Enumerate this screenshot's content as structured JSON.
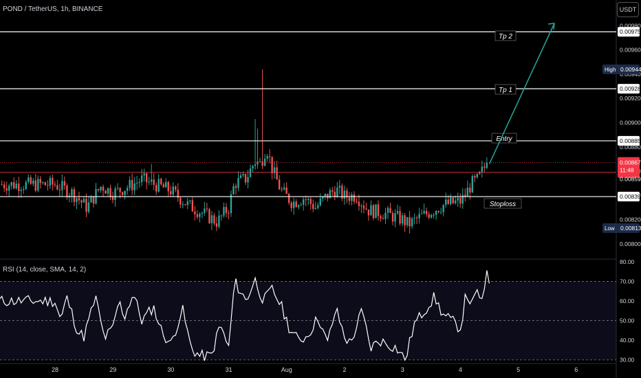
{
  "header": {
    "title": "POND / TetherUS, 1h, BINANCE",
    "currency_button": "USDT"
  },
  "rsi_header": {
    "title": "RSI (14, close, SMA, 14, 2)"
  },
  "colors": {
    "up": "#26a69a",
    "down": "#ef5350",
    "background": "#000000",
    "level_line": "#ffffff",
    "arrow": "#26a69a",
    "rsi_line": "#ffffff",
    "rsi_band": "#0d0c1a",
    "current_price_tag": "#f23645",
    "high_low_tag": "#1c2b4a"
  },
  "chart_data": [
    {
      "type": "candlestick",
      "title": "POND / TetherUS, 1h, BINANCE",
      "x_tick_labels": [
        "28",
        "29",
        "30",
        "31",
        "Aug",
        "2",
        "3",
        "4",
        "5",
        "6"
      ],
      "y_ticks": [
        "0.00980",
        "0.00960",
        "0.00940",
        "0.00920",
        "0.00900",
        "0.00880",
        "0.00860",
        "0.00840",
        "0.00820",
        "0.00800"
      ],
      "ylim": [
        0.00788,
        0.00991
      ],
      "levels": [
        {
          "label": "Tp 2",
          "price": "0.00975"
        },
        {
          "label": "Tp 1",
          "price": "0.00928"
        },
        {
          "label": "Entry",
          "price": "0.00885"
        },
        {
          "label": "Stoploss",
          "price": "0.00839"
        }
      ],
      "price_tags": {
        "high": {
          "label": "High",
          "price": "0.00944"
        },
        "low": {
          "label": "Low",
          "price": "0.00813"
        },
        "current": {
          "price": "0.00867",
          "countdown": "11:48"
        },
        "previous_close": {
          "price": "0.00859"
        }
      },
      "series": [
        {
          "anchor_days": [
            0,
            0.3,
            0.55,
            0.8,
            1.0,
            1.3,
            1.5,
            2.0,
            2.3,
            2.6,
            2.8,
            3.0,
            3.1,
            3.3,
            3.45,
            3.55,
            3.65,
            3.75,
            3.9,
            4.1,
            4.3,
            4.5,
            4.7,
            4.85,
            5.0,
            5.2,
            5.4,
            5.7,
            6.0,
            6.1,
            6.3,
            6.5,
            6.7,
            7.0,
            7.05,
            7.2,
            7.3,
            7.4,
            7.47
          ],
          "anchor_close": [
            0.00849,
            0.00842,
            0.0083,
            0.00848,
            0.00842,
            0.00848,
            0.00853,
            0.00844,
            0.00832,
            0.00824,
            0.00818,
            0.0083,
            0.0085,
            0.00854,
            0.00868,
            0.00866,
            0.0088,
            0.00862,
            0.00844,
            0.00834,
            0.00838,
            0.0083,
            0.0084,
            0.00845,
            0.00839,
            0.0084,
            0.00828,
            0.00825,
            0.0082,
            0.00816,
            0.00822,
            0.00827,
            0.00832,
            0.00835,
            0.00838,
            0.0085,
            0.00853,
            0.00862,
            0.00867
          ]
        }
      ]
    },
    {
      "type": "line",
      "title": "RSI (14, close, SMA, 14, 2)",
      "y_ticks": [
        "80.00",
        "70.00",
        "60.00",
        "50.00",
        "40.00",
        "30.00"
      ],
      "ylim": [
        28.5,
        81
      ],
      "band": [
        30,
        70
      ],
      "mid_line": 50,
      "series": [
        {
          "name": "RSI",
          "anchor_days": [
            0,
            0.1,
            0.2,
            0.4,
            0.5,
            0.7,
            0.85,
            1.0,
            1.1,
            1.2,
            1.35,
            1.5,
            1.7,
            1.85,
            2.0,
            2.2,
            2.35,
            2.5,
            2.7,
            2.85,
            3.0,
            3.1,
            3.3,
            3.45,
            3.6,
            3.75,
            3.9,
            4.05,
            4.2,
            4.35,
            4.55,
            4.7,
            4.85,
            5.0,
            5.1,
            5.3,
            5.45,
            5.6,
            5.75,
            5.9,
            6.05,
            6.2,
            6.4,
            6.55,
            6.7,
            6.85,
            7.0,
            7.1,
            7.2,
            7.3,
            7.4,
            7.45,
            7.5
          ],
          "values": [
            60,
            50,
            62,
            44,
            42,
            62,
            41,
            46,
            60,
            52,
            64,
            50,
            57,
            44,
            38,
            56,
            36,
            32,
            32,
            48,
            36,
            70,
            60,
            71,
            60,
            66,
            58,
            46,
            40,
            42,
            52,
            38,
            56,
            42,
            38,
            55,
            36,
            40,
            38,
            36,
            30,
            48,
            56,
            62,
            53,
            50,
            46,
            64,
            58,
            65,
            58,
            76,
            70
          ]
        }
      ]
    }
  ]
}
